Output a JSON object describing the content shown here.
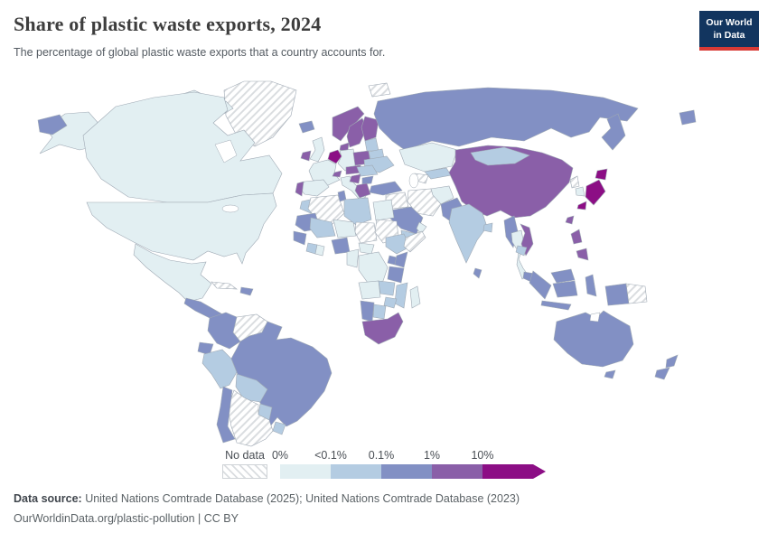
{
  "header": {
    "title": "Share of plastic waste exports, 2024",
    "subtitle": "The percentage of global plastic waste exports that a country accounts for.",
    "logo_line1": "Our World",
    "logo_line2": "in Data"
  },
  "legend": {
    "no_data_label": "No data",
    "ticks": [
      "0%",
      "<0.1%",
      "0.1%",
      "1%",
      "10%"
    ]
  },
  "footer": {
    "source_label": "Data source:",
    "source_text": " United Nations Comtrade Database (2025); United Nations Comtrade Database (2023)",
    "link_text": "OurWorldinData.org/plastic-pollution",
    "license_text": " | CC BY"
  },
  "colors": {
    "logo_bg": "#12355f",
    "logo_accent": "#d93a35",
    "border": "#9fa9b4",
    "hatch_line": "#dadde0"
  },
  "chart_data": {
    "type": "choropleth",
    "title": "Share of plastic waste exports, 2024",
    "subtitle": "The percentage of global plastic waste exports that a country accounts for.",
    "year": 2024,
    "unit": "share of global plastic waste exports",
    "legend_position": "bottom",
    "no_data": {
      "label": "No data",
      "pattern": "diagonal-hatch"
    },
    "bins": [
      {
        "label": "0%",
        "color": "#e2eff2"
      },
      {
        "label": "<0.1%",
        "color": "#b4cce2"
      },
      {
        "label": "0.1%",
        "color": "#8290c4"
      },
      {
        "label": "1%",
        "color": "#8a5fa8"
      },
      {
        "label": "10%",
        "color": "#8c0e85"
      }
    ],
    "countries": {
      "greenland": "No data",
      "canadian-arctic": "0%",
      "alaska": "0%",
      "canada": "0%",
      "usa": "0%",
      "mexico": "0%",
      "central-america": "0.1%",
      "cuba": "No data",
      "hispaniola": "0.1%",
      "colombia": "0.1%",
      "venezuela": "No data",
      "guianas": "<0.1%",
      "ecuador": "0.1%",
      "peru": "<0.1%",
      "brazil": "0.1%",
      "bolivia": "<0.1%",
      "paraguay": "<0.1%",
      "uruguay": "<0.1%",
      "chile": "0.1%",
      "argentina": "No data",
      "iceland": "0.1%",
      "uk": "0%",
      "ireland": "1%",
      "norway": "1%",
      "sweden": "1%",
      "finland": "1%",
      "denmark": "1%",
      "netherlands-belgium": "10%",
      "germany": "0%",
      "france": "0%",
      "spain": "0%",
      "portugal": "1%",
      "italy": "0%",
      "switzerland": "1%",
      "czechia-austria": "1%",
      "poland": "1%",
      "baltics": "<0.1%",
      "belarus": "<0.1%",
      "ukraine": "<0.1%",
      "hungary-romania": "<0.1%",
      "balkans": "1%",
      "bulgaria": "0.1%",
      "greece": "1%",
      "svalbard": "No data",
      "russia": "0.1%",
      "chukotka-west": "0.1%",
      "chukotka-east": "0.1%",
      "kazakhstan": "0%",
      "uzbekistan": "<0.1%",
      "turkmenistan": "No data",
      "turkey": "0.1%",
      "iraq-levant": "No data",
      "iran": "No data",
      "afghanistan": "0%",
      "pakistan": "0.1%",
      "saudi-arabia": "0.1%",
      "yemen": "<0.1%",
      "oman": "0%",
      "egypt": "0%",
      "india": "<0.1%",
      "sri-lanka": "0.1%",
      "bangladesh": "<0.1%",
      "myanmar": "0.1%",
      "thailand": "0%",
      "vietnam": "1%",
      "cambodia": "<0.1%",
      "malaysia": "0.1%",
      "china": "1%",
      "mongolia": "<0.1%",
      "north-korea": "No data",
      "south-korea": "0%",
      "japan": "10%",
      "taiwan": "1%",
      "philippines": "1%",
      "indonesia": "0.1%",
      "papua-new-guinea": "No data",
      "australia": "0.1%",
      "new-zealand": "0.1%",
      "morocco": "<0.1%",
      "algeria": "No data",
      "tunisia": "0.1%",
      "libya": "<0.1%",
      "mauritania": "0.1%",
      "mali": "<0.1%",
      "niger": "0%",
      "chad": "No data",
      "sudan": "No data",
      "ethiopia": "<0.1%",
      "somalia": "No data",
      "senegal": "0.1%",
      "ivory-coast": "<0.1%",
      "ghana": "0%",
      "nigeria": "0.1%",
      "cameroon": "0%",
      "central-african-republic": "0%",
      "drc": "0%",
      "kenya": "0.1%",
      "uganda": "0.1%",
      "tanzania": "0.1%",
      "angola": "0%",
      "zambia": "<0.1%",
      "mozambique": "<0.1%",
      "zimbabwe": "<0.1%",
      "namibia": "0.1%",
      "botswana": "<0.1%",
      "south-africa": "1%",
      "madagascar": "0%"
    }
  }
}
